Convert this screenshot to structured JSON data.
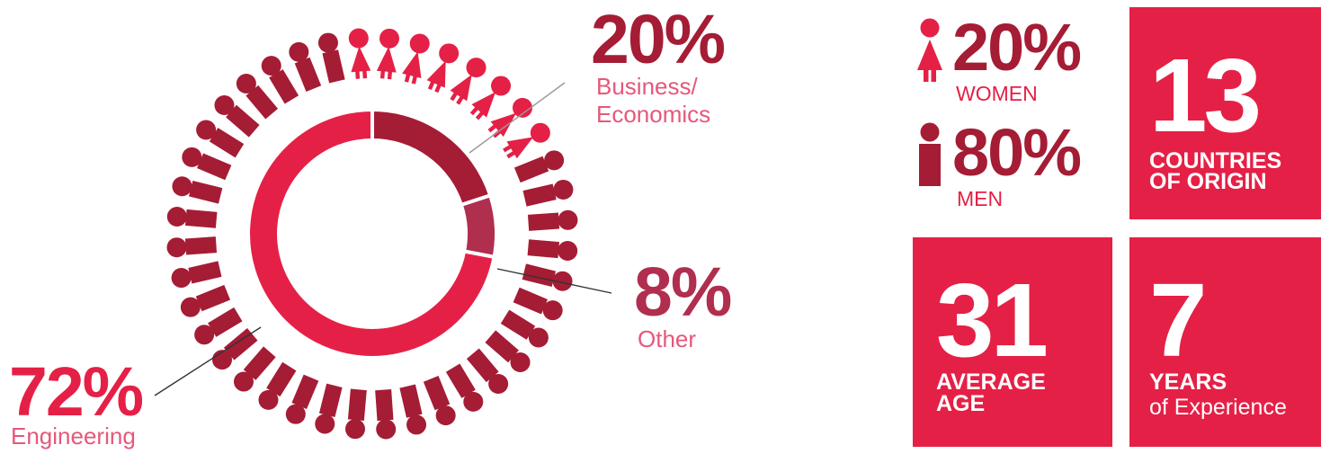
{
  "colors": {
    "accent": "#e52046",
    "dark": "#a51c35",
    "medium": "#b02e4e",
    "label_light": "#e5587a"
  },
  "chart_data": {
    "type": "donut",
    "categories": [
      "Engineering",
      "Business/ Economics",
      "Other"
    ],
    "values": [
      72,
      20,
      8
    ],
    "value_labels": [
      "72%",
      "20%",
      "8%"
    ],
    "colors": [
      "#e52046",
      "#a51c35",
      "#b02e4e"
    ],
    "pictogram": {
      "total": 40,
      "icons": [
        "female",
        "female",
        "female",
        "female",
        "female",
        "female",
        "female",
        "female",
        "male",
        "male",
        "male",
        "male",
        "male",
        "male",
        "male",
        "male",
        "male",
        "male",
        "male",
        "male",
        "male",
        "male",
        "male",
        "male",
        "male",
        "male",
        "male",
        "male",
        "male",
        "male",
        "male",
        "male",
        "male",
        "male",
        "male",
        "male",
        "male",
        "male",
        "male",
        "male"
      ]
    }
  },
  "labels": {
    "engineering": {
      "pct": "72%",
      "name": "Engineering"
    },
    "business": {
      "pct": "20%",
      "name_line1": "Business/",
      "name_line2": "Economics"
    },
    "other": {
      "pct": "8%",
      "name": "Other"
    }
  },
  "gender": {
    "women": {
      "pct": "20%",
      "label": "WOMEN",
      "icon": "female-icon"
    },
    "men": {
      "pct": "80%",
      "label": "MEN",
      "icon": "male-icon"
    }
  },
  "tiles": {
    "countries": {
      "value": "13",
      "caption_line1": "COUNTRIES",
      "caption_line2": "OF ORIGIN"
    },
    "age": {
      "value": "31",
      "caption_line1": "AVERAGE",
      "caption_line2": "AGE"
    },
    "experience": {
      "value": "7",
      "caption_line1": "YEARS",
      "caption_line2": "of Experience"
    }
  }
}
